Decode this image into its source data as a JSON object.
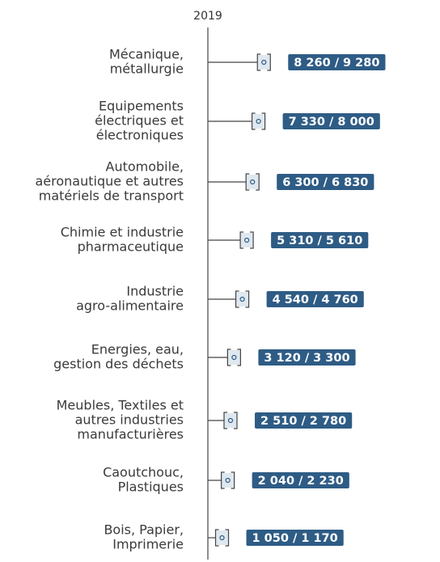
{
  "chart_data": {
    "type": "range",
    "title": "2019",
    "categories": [
      [
        "Mécanique,",
        "métallurgie"
      ],
      [
        "Equipements",
        "électriques et",
        "électroniques"
      ],
      [
        "Automobile,",
        "aéronautique et autres",
        "matériels de transport"
      ],
      [
        "Chimie et industrie",
        "pharmaceutique"
      ],
      [
        "Industrie",
        "agro-alimentaire"
      ],
      [
        "Energies, eau,",
        "gestion des déchets"
      ],
      [
        "Meubles, Textiles et",
        "autres industries",
        "manufacturières"
      ],
      [
        "Caoutchouc,",
        "Plastiques"
      ],
      [
        "Bois, Papier,",
        "Imprimerie"
      ]
    ],
    "low": [
      8260,
      7330,
      6300,
      5310,
      4540,
      3120,
      2510,
      2040,
      1050
    ],
    "high": [
      9280,
      8000,
      6830,
      5610,
      4760,
      3300,
      2780,
      2230,
      1170
    ],
    "value_labels": [
      "8 260 / 9 280",
      "7 330 / 8 000",
      "6 300 / 6 830",
      "5 310 / 5 610",
      "4 540 / 4 760",
      "3 120 / 3 300",
      "2 510 / 2 780",
      "2 040 / 2 230",
      "1 050 / 1 170"
    ],
    "xlim": [
      0,
      40000
    ],
    "color": "#2e5c85"
  }
}
